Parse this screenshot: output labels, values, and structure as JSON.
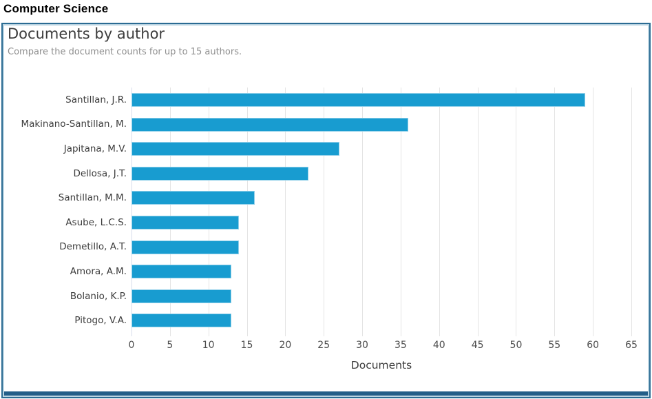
{
  "page": {
    "title": "Computer Science"
  },
  "panel": {
    "heading": "Documents by author",
    "subtitle": "Compare the document counts for up to 15 authors."
  },
  "chart_data": {
    "type": "bar",
    "orientation": "horizontal",
    "title": "Documents by author",
    "subtitle": "Compare the document counts for up to 15 authors.",
    "categories": [
      "Santillan, J.R.",
      "Makinano-Santillan, M.",
      "Japitana, M.V.",
      "Dellosa, J.T.",
      "Santillan, M.M.",
      "Asube, L.C.S.",
      "Demetillo, A.T.",
      "Amora, A.M.",
      "Bolanio, K.P.",
      "Pitogo, V.A."
    ],
    "values": [
      59,
      36,
      27,
      23,
      16,
      14,
      14,
      13,
      13,
      13
    ],
    "xlabel": "Documents",
    "ylabel": "",
    "xticks": [
      0,
      5,
      10,
      15,
      20,
      25,
      30,
      35,
      40,
      45,
      50,
      55,
      60,
      65
    ],
    "xlim": [
      0,
      65
    ],
    "grid": true,
    "legend": false
  },
  "colors": {
    "bar_color": "#189CD0",
    "bar_border": "#90CFE9",
    "panel_border": "#2B6B93",
    "panel_border_inner": "#B9D3E1",
    "panel_bottom_bar": "#235E88",
    "grid": "#E4E4E4",
    "zero_line": "#D6DCEA",
    "text_dark": "#3C3C3C",
    "text_muted": "#8F8F8F"
  }
}
